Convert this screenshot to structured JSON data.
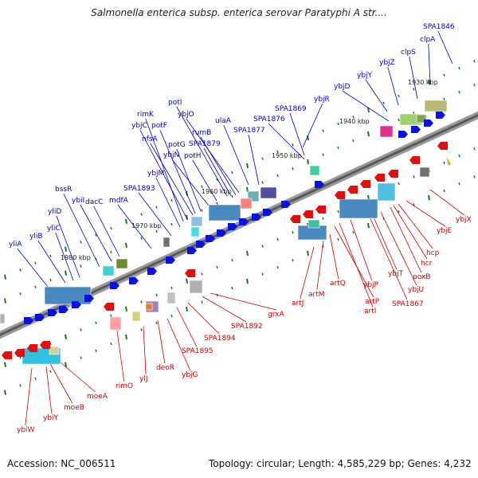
{
  "title": "Salmonella enterica subsp. enterica serovar Paratyphi A str....",
  "footer": {
    "accession": "Accession: NC_006511",
    "topology": "Topology: circular; Length: 4,585,229 bp; Genes: 4,232"
  },
  "colors": {
    "forward_label": "#0000cc",
    "reverse_label": "#cc0000",
    "backbone": "#808080",
    "tick": "#1a7a1a"
  },
  "scale_labels": [
    "1930 kbp",
    "1940 kbp",
    "1950 kbp",
    "1960 kbp",
    "1970 kbp",
    "1980 kbp"
  ],
  "forward_genes": [
    "SPA1846",
    "clpA",
    "clpS",
    "ybjZ",
    "ybjY",
    "ybjD",
    "ybjR",
    "SPA1869",
    "SPA1876",
    "SPA1877",
    "ulaA",
    "ybjO",
    "rumB",
    "SPA1879",
    "potI",
    "potH",
    "ybjN",
    "potG",
    "potF",
    "nfsA",
    "ybjC",
    "rimK",
    "ybjM",
    "SPA1893",
    "mdfA",
    "dacC",
    "ybiI",
    "bssR",
    "yliD",
    "yliC",
    "yliB",
    "yliA"
  ],
  "reverse_genes": [
    "ybjX",
    "ybjE",
    "hcp",
    "hcr",
    "poxB",
    "ybjU",
    "ybjT",
    "SPA1867",
    "ybjP",
    "artI",
    "artP",
    "artQ",
    "artM",
    "artJ",
    "grxA",
    "SPA1892",
    "SPA1894",
    "SPA1895",
    "ybjG",
    "deoR",
    "ylJ",
    "rimO",
    "moeA",
    "moeB",
    "ybiY",
    "ybiW"
  ]
}
